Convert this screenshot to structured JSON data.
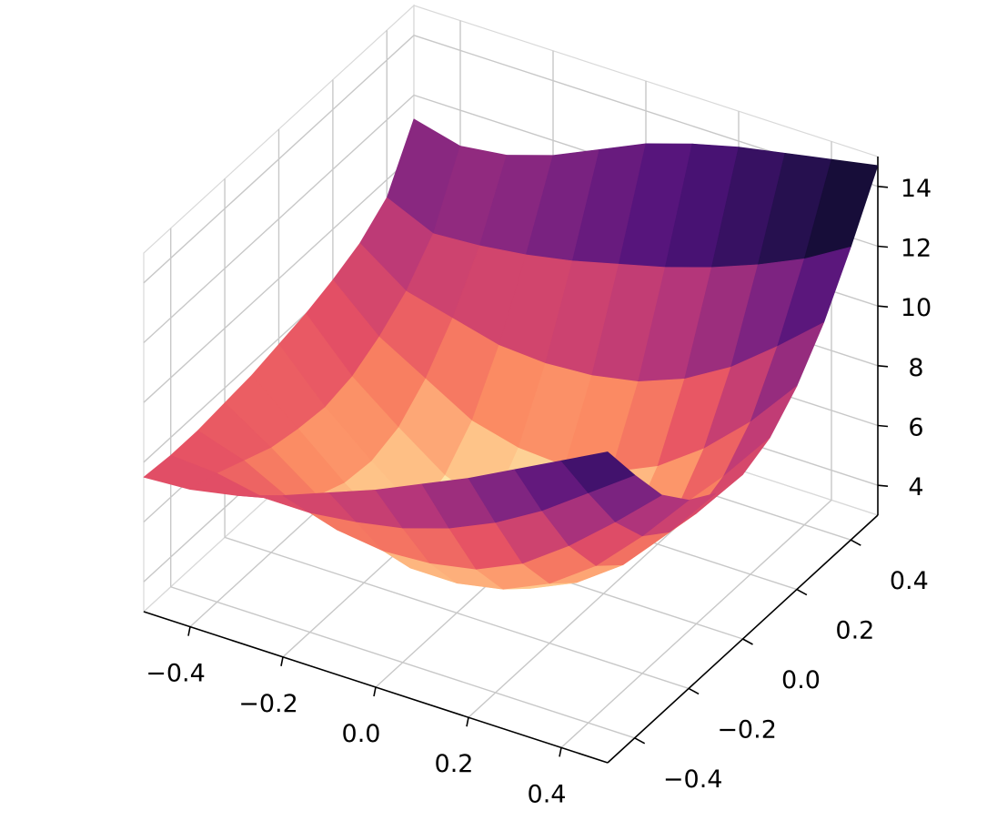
{
  "chart_data": {
    "type": "surface3d",
    "title": "",
    "xlabel": "",
    "ylabel": "",
    "zlabel": "",
    "colormap": "magma",
    "xlim": [
      -0.5,
      0.5
    ],
    "ylim": [
      -0.5,
      0.5
    ],
    "zlim": [
      3.0,
      15.0
    ],
    "x_ticks": [
      -0.4,
      -0.2,
      0.0,
      0.2,
      0.4
    ],
    "y_ticks": [
      -0.4,
      -0.2,
      0.0,
      0.2,
      0.4
    ],
    "z_ticks": [
      4,
      6,
      8,
      10,
      12,
      14
    ],
    "x_tick_labels": [
      "−0.4",
      "−0.2",
      "0.0",
      "0.2",
      "0.4"
    ],
    "y_tick_labels": [
      "−0.4",
      "−0.2",
      "0.0",
      "0.2",
      "0.4"
    ],
    "z_tick_labels": [
      "4",
      "6",
      "8",
      "10",
      "12",
      "14"
    ],
    "grid": true,
    "surface": {
      "x": [
        -0.5,
        -0.4,
        -0.3,
        -0.2,
        -0.1,
        0.0,
        0.1,
        0.2,
        0.3,
        0.4,
        0.5
      ],
      "y": [
        -0.5,
        -0.4,
        -0.3,
        -0.2,
        -0.1,
        0.0,
        0.1,
        0.2,
        0.3,
        0.4,
        0.5
      ],
      "z": [
        [
          7.5,
          7.4,
          7.4,
          7.5,
          7.6,
          7.8,
          8.0,
          8.3,
          8.7,
          9.4,
          11.2
        ],
        [
          7.6,
          7.3,
          6.9,
          6.5,
          6.3,
          6.2,
          6.4,
          6.9,
          7.6,
          8.7,
          10.8
        ],
        [
          7.9,
          7.0,
          6.1,
          5.4,
          5.0,
          4.9,
          5.2,
          6.0,
          7.2,
          8.8,
          11.0
        ],
        [
          8.4,
          7.0,
          5.6,
          4.5,
          3.9,
          3.7,
          4.1,
          5.1,
          6.8,
          9.0,
          11.5
        ],
        [
          9.0,
          7.2,
          5.4,
          4.0,
          3.3,
          3.1,
          3.5,
          4.7,
          6.7,
          9.3,
          12.2
        ],
        [
          9.6,
          7.5,
          5.5,
          4.0,
          3.2,
          3.0,
          3.4,
          4.6,
          6.8,
          9.7,
          12.9
        ],
        [
          10.3,
          8.0,
          5.8,
          4.3,
          3.5,
          3.3,
          3.7,
          4.9,
          7.1,
          10.1,
          13.4
        ],
        [
          11.0,
          8.7,
          6.5,
          5.0,
          4.2,
          4.0,
          4.4,
          5.6,
          7.7,
          10.6,
          13.8
        ],
        [
          11.8,
          9.6,
          7.6,
          6.1,
          5.3,
          5.1,
          5.5,
          6.7,
          8.6,
          11.2,
          14.1
        ],
        [
          12.6,
          10.7,
          8.9,
          7.6,
          6.9,
          6.7,
          7.1,
          8.1,
          9.8,
          11.9,
          14.4
        ],
        [
          13.4,
          11.8,
          10.3,
          9.3,
          8.7,
          8.5,
          8.9,
          9.8,
          11.1,
          12.8,
          14.7
        ]
      ]
    }
  }
}
